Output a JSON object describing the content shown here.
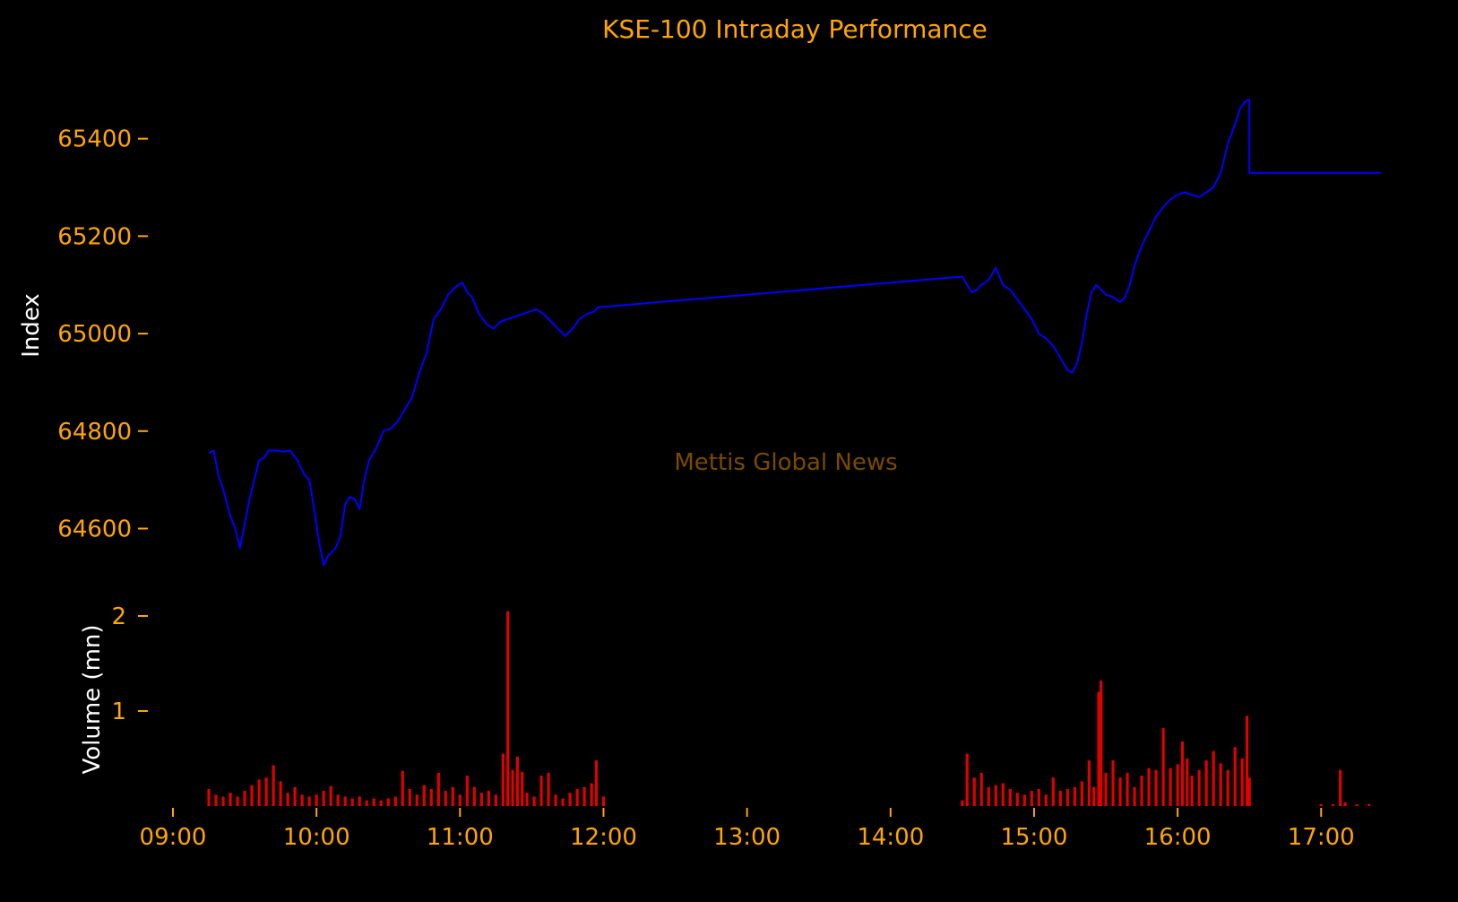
{
  "colors": {
    "background": "#000000",
    "text_accent": "#ffa500",
    "axis_label": "#ffffff",
    "index_line": "#0000ff",
    "volume_bar": "#e00000",
    "watermark": "#7a4a00"
  },
  "watermark": "Mettis Global News",
  "chart_data": [
    {
      "type": "line",
      "title": "KSE-100 Intraday Performance",
      "xlabel": "",
      "ylabel": "Index",
      "xlim": [
        "09:00",
        "17:25"
      ],
      "ylim": [
        64520,
        65530
      ],
      "yticks": [
        {
          "value": 64600,
          "label": "64600"
        },
        {
          "value": 64800,
          "label": "64800"
        },
        {
          "value": 65000,
          "label": "65000"
        },
        {
          "value": 65200,
          "label": "65200"
        },
        {
          "value": 65400,
          "label": "65400"
        }
      ],
      "grid": false,
      "series": [
        {
          "points": [
            [
              "09:15",
              64755
            ],
            [
              "09:17",
              64760
            ],
            [
              "09:19",
              64710
            ],
            [
              "09:21",
              64680
            ],
            [
              "09:24",
              64625
            ],
            [
              "09:26",
              64600
            ],
            [
              "09:28",
              64560
            ],
            [
              "09:30",
              64610
            ],
            [
              "09:32",
              64660
            ],
            [
              "09:34",
              64700
            ],
            [
              "09:36",
              64740
            ],
            [
              "09:38",
              64745
            ],
            [
              "09:40",
              64760
            ],
            [
              "09:43",
              64760
            ],
            [
              "09:46",
              64758
            ],
            [
              "09:49",
              64760
            ],
            [
              "09:52",
              64740
            ],
            [
              "09:55",
              64710
            ],
            [
              "09:57",
              64700
            ],
            [
              "09:59",
              64640
            ],
            [
              "10:01",
              64575
            ],
            [
              "10:03",
              64525
            ],
            [
              "10:05",
              64545
            ],
            [
              "10:08",
              64560
            ],
            [
              "10:10",
              64585
            ],
            [
              "10:12",
              64650
            ],
            [
              "10:14",
              64665
            ],
            [
              "10:16",
              64660
            ],
            [
              "10:18",
              64640
            ],
            [
              "10:20",
              64700
            ],
            [
              "10:22",
              64740
            ],
            [
              "10:25",
              64765
            ],
            [
              "10:28",
              64800
            ],
            [
              "10:31",
              64805
            ],
            [
              "10:34",
              64820
            ],
            [
              "10:37",
              64845
            ],
            [
              "10:40",
              64870
            ],
            [
              "10:43",
              64920
            ],
            [
              "10:46",
              64960
            ],
            [
              "10:49",
              65030
            ],
            [
              "10:52",
              65050
            ],
            [
              "10:55",
              65080
            ],
            [
              "10:58",
              65095
            ],
            [
              "11:01",
              65105
            ],
            [
              "11:03",
              65085
            ],
            [
              "11:05",
              65075
            ],
            [
              "11:08",
              65040
            ],
            [
              "11:11",
              65020
            ],
            [
              "11:14",
              65010
            ],
            [
              "11:17",
              65025
            ],
            [
              "11:20",
              65030
            ],
            [
              "11:23",
              65035
            ],
            [
              "11:26",
              65040
            ],
            [
              "11:29",
              65045
            ],
            [
              "11:32",
              65050
            ],
            [
              "11:35",
              65040
            ],
            [
              "11:38",
              65025
            ],
            [
              "11:41",
              65010
            ],
            [
              "11:44",
              64995
            ],
            [
              "11:47",
              65010
            ],
            [
              "11:50",
              65030
            ],
            [
              "11:53",
              65040
            ],
            [
              "11:56",
              65045
            ],
            [
              "11:58",
              65055
            ],
            [
              "12:00",
              65055
            ],
            [
              "14:30",
              65117
            ],
            [
              "14:32",
              65100
            ],
            [
              "14:34",
              65085
            ],
            [
              "14:36",
              65090
            ],
            [
              "14:38",
              65100
            ],
            [
              "14:41",
              65110
            ],
            [
              "14:44",
              65135
            ],
            [
              "14:47",
              65100
            ],
            [
              "14:50",
              65090
            ],
            [
              "14:53",
              65070
            ],
            [
              "14:56",
              65050
            ],
            [
              "14:59",
              65030
            ],
            [
              "15:02",
              65000
            ],
            [
              "15:05",
              64990
            ],
            [
              "15:08",
              64975
            ],
            [
              "15:11",
              64950
            ],
            [
              "15:14",
              64925
            ],
            [
              "15:16",
              64920
            ],
            [
              "15:18",
              64940
            ],
            [
              "15:20",
              64980
            ],
            [
              "15:22",
              65040
            ],
            [
              "15:24",
              65085
            ],
            [
              "15:26",
              65100
            ],
            [
              "15:28",
              65090
            ],
            [
              "15:30",
              65080
            ],
            [
              "15:33",
              65075
            ],
            [
              "15:36",
              65065
            ],
            [
              "15:38",
              65075
            ],
            [
              "15:40",
              65100
            ],
            [
              "15:42",
              65140
            ],
            [
              "15:45",
              65180
            ],
            [
              "15:48",
              65210
            ],
            [
              "15:51",
              65240
            ],
            [
              "15:54",
              65260
            ],
            [
              "15:57",
              65275
            ],
            [
              "16:00",
              65285
            ],
            [
              "16:03",
              65290
            ],
            [
              "16:06",
              65285
            ],
            [
              "16:09",
              65280
            ],
            [
              "16:12",
              65290
            ],
            [
              "16:15",
              65300
            ],
            [
              "16:18",
              65330
            ],
            [
              "16:21",
              65390
            ],
            [
              "16:24",
              65430
            ],
            [
              "16:26",
              65460
            ],
            [
              "16:28",
              65475
            ],
            [
              "16:30",
              65480
            ],
            [
              "16:30",
              65330
            ],
            [
              "17:25",
              65330
            ]
          ]
        }
      ]
    },
    {
      "type": "bar",
      "title": "",
      "xlabel": "",
      "ylabel": "Volume (mn)",
      "xlim": [
        "09:00",
        "17:25"
      ],
      "ylim": [
        0,
        2.1
      ],
      "yticks": [
        {
          "value": 1,
          "label": "1"
        },
        {
          "value": 2,
          "label": "2"
        }
      ],
      "xticks": [
        "09:00",
        "10:00",
        "11:00",
        "12:00",
        "13:00",
        "14:00",
        "15:00",
        "16:00",
        "17:00"
      ],
      "grid": false,
      "series": [
        {
          "points": [
            [
              "09:15",
              0.18
            ],
            [
              "09:18",
              0.12
            ],
            [
              "09:21",
              0.1
            ],
            [
              "09:24",
              0.14
            ],
            [
              "09:27",
              0.1
            ],
            [
              "09:30",
              0.16
            ],
            [
              "09:33",
              0.22
            ],
            [
              "09:36",
              0.28
            ],
            [
              "09:39",
              0.3
            ],
            [
              "09:42",
              0.43
            ],
            [
              "09:45",
              0.26
            ],
            [
              "09:48",
              0.14
            ],
            [
              "09:51",
              0.2
            ],
            [
              "09:54",
              0.12
            ],
            [
              "09:57",
              0.1
            ],
            [
              "10:00",
              0.12
            ],
            [
              "10:03",
              0.16
            ],
            [
              "10:06",
              0.21
            ],
            [
              "10:09",
              0.12
            ],
            [
              "10:12",
              0.1
            ],
            [
              "10:15",
              0.08
            ],
            [
              "10:18",
              0.1
            ],
            [
              "10:21",
              0.06
            ],
            [
              "10:24",
              0.08
            ],
            [
              "10:27",
              0.06
            ],
            [
              "10:30",
              0.08
            ],
            [
              "10:33",
              0.1
            ],
            [
              "10:36",
              0.37
            ],
            [
              "10:39",
              0.18
            ],
            [
              "10:42",
              0.12
            ],
            [
              "10:45",
              0.22
            ],
            [
              "10:48",
              0.18
            ],
            [
              "10:51",
              0.35
            ],
            [
              "10:54",
              0.16
            ],
            [
              "10:57",
              0.2
            ],
            [
              "11:00",
              0.12
            ],
            [
              "11:03",
              0.32
            ],
            [
              "11:06",
              0.2
            ],
            [
              "11:09",
              0.14
            ],
            [
              "11:12",
              0.16
            ],
            [
              "11:15",
              0.12
            ],
            [
              "11:18",
              0.55
            ],
            [
              "11:20",
              2.05
            ],
            [
              "11:22",
              0.38
            ],
            [
              "11:24",
              0.52
            ],
            [
              "11:26",
              0.36
            ],
            [
              "11:28",
              0.14
            ],
            [
              "11:31",
              0.1
            ],
            [
              "11:34",
              0.32
            ],
            [
              "11:37",
              0.35
            ],
            [
              "11:40",
              0.12
            ],
            [
              "11:43",
              0.08
            ],
            [
              "11:46",
              0.14
            ],
            [
              "11:49",
              0.18
            ],
            [
              "11:52",
              0.2
            ],
            [
              "11:55",
              0.24
            ],
            [
              "11:57",
              0.48
            ],
            [
              "12:00",
              0.1
            ],
            [
              "14:30",
              0.06
            ],
            [
              "14:32",
              0.55
            ],
            [
              "14:35",
              0.3
            ],
            [
              "14:38",
              0.35
            ],
            [
              "14:41",
              0.2
            ],
            [
              "14:44",
              0.22
            ],
            [
              "14:47",
              0.24
            ],
            [
              "14:50",
              0.18
            ],
            [
              "14:53",
              0.14
            ],
            [
              "14:56",
              0.12
            ],
            [
              "14:59",
              0.16
            ],
            [
              "15:02",
              0.18
            ],
            [
              "15:05",
              0.12
            ],
            [
              "15:08",
              0.3
            ],
            [
              "15:11",
              0.16
            ],
            [
              "15:14",
              0.18
            ],
            [
              "15:17",
              0.2
            ],
            [
              "15:20",
              0.26
            ],
            [
              "15:23",
              0.48
            ],
            [
              "15:25",
              0.2
            ],
            [
              "15:27",
              1.2
            ],
            [
              "15:28",
              1.32
            ],
            [
              "15:30",
              0.35
            ],
            [
              "15:33",
              0.48
            ],
            [
              "15:36",
              0.3
            ],
            [
              "15:39",
              0.35
            ],
            [
              "15:42",
              0.2
            ],
            [
              "15:45",
              0.32
            ],
            [
              "15:48",
              0.4
            ],
            [
              "15:51",
              0.38
            ],
            [
              "15:54",
              0.82
            ],
            [
              "15:57",
              0.4
            ],
            [
              "16:00",
              0.44
            ],
            [
              "16:02",
              0.68
            ],
            [
              "16:04",
              0.5
            ],
            [
              "16:06",
              0.32
            ],
            [
              "16:09",
              0.38
            ],
            [
              "16:12",
              0.48
            ],
            [
              "16:15",
              0.58
            ],
            [
              "16:18",
              0.45
            ],
            [
              "16:21",
              0.38
            ],
            [
              "16:24",
              0.62
            ],
            [
              "16:27",
              0.5
            ],
            [
              "16:29",
              0.95
            ],
            [
              "16:30",
              0.3
            ],
            [
              "17:00",
              0.02
            ],
            [
              "17:05",
              0.02
            ],
            [
              "17:08",
              0.38
            ],
            [
              "17:10",
              0.04
            ],
            [
              "17:15",
              0.02
            ],
            [
              "17:20",
              0.02
            ]
          ]
        }
      ]
    }
  ]
}
